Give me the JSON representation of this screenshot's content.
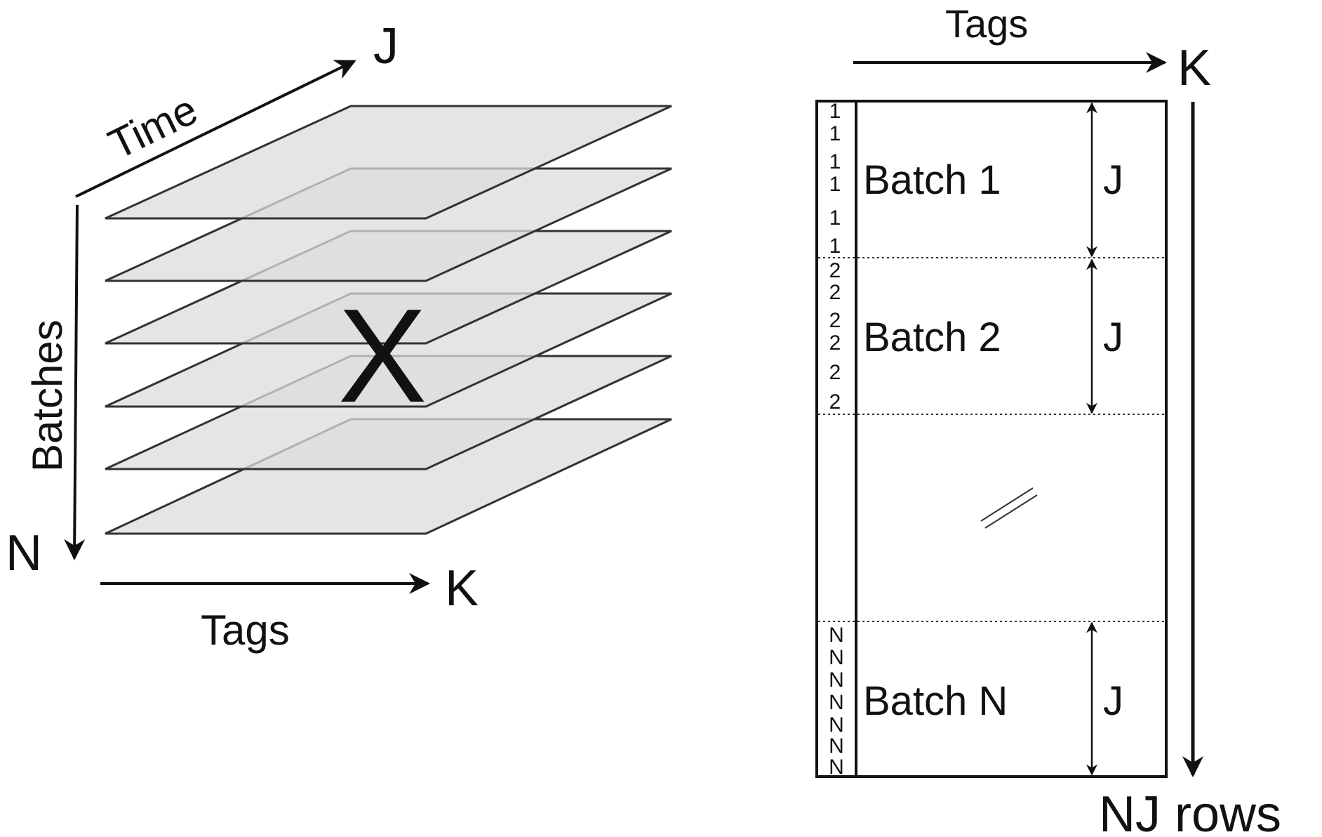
{
  "left": {
    "axis_time": "Time",
    "axis_time_end": "J",
    "axis_batches": "Batches",
    "axis_batches_end": "N",
    "axis_tags": "Tags",
    "axis_tags_end": "K",
    "center_symbol": "X",
    "slice_count": 6
  },
  "right": {
    "axis_tags": "Tags",
    "axis_tags_end": "K",
    "rows_label": "NJ rows",
    "blocks": [
      {
        "label": "Batch 1",
        "height": "J",
        "index": "1"
      },
      {
        "label": "Batch 2",
        "height": "J",
        "index": "2"
      },
      {
        "label": "Batch N",
        "height": "J",
        "index": "N"
      }
    ]
  },
  "colors": {
    "stroke": "#222222",
    "slice_fill": "#d4d4d4",
    "text": "#111111"
  }
}
